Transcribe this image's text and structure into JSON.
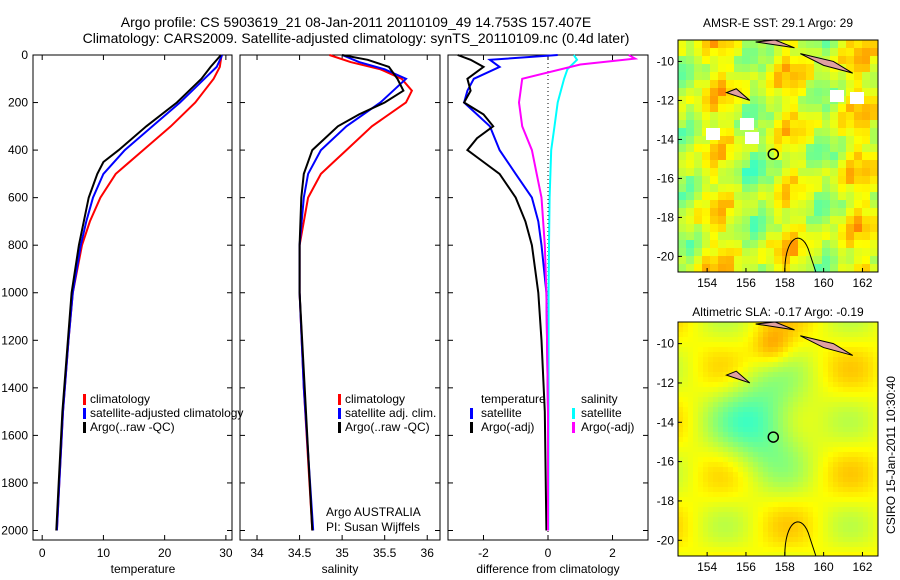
{
  "title_line1": "Argo profile: CS 5903619_21 08-Jan-2011 20110109_49 14.753S 157.407E",
  "title_line2": "Climatology: CARS2009. Satellite-adjusted climatology: synTS_20110109.nc (0.4d later)",
  "side_stamp": "CSIRO 15-Jan-2011 10:30:40",
  "credits": {
    "line1": "Argo AUSTRALIA",
    "line2": "PI: Susan Wijffels"
  },
  "colors": {
    "climatology": "#ff0000",
    "satellite": "#0000ff",
    "argo": "#000000",
    "sal_satellite": "#00ffff",
    "sal_argo": "#ff00ff"
  },
  "chart_data": [
    {
      "type": "line",
      "xlabel": "temperature",
      "ylabel": "",
      "xlim": [
        -1.5,
        31
      ],
      "ylim": [
        2040,
        0
      ],
      "xticks": [
        "0",
        "10",
        "20",
        "30"
      ],
      "yticks": [
        "0",
        "200",
        "400",
        "600",
        "800",
        "1000",
        "1200",
        "1400",
        "1600",
        "1800",
        "2000"
      ],
      "legend": [
        "climatology",
        "satellite-adjusted climatology",
        "Argo(..raw -QC)"
      ],
      "legend_position": "lower-right",
      "series": [
        {
          "name": "climatology",
          "color": "#ff0000",
          "depth": [
            0,
            50,
            100,
            150,
            200,
            300,
            400,
            500,
            600,
            700,
            800,
            1000,
            1200,
            1500,
            1800,
            2000
          ],
          "values": [
            29.3,
            29,
            28,
            26.5,
            25,
            21,
            16.5,
            12,
            9.5,
            7.8,
            6.5,
            5,
            4.3,
            3.4,
            2.8,
            2.4
          ]
        },
        {
          "name": "satellite-adjusted climatology",
          "color": "#0000ff",
          "depth": [
            0,
            50,
            100,
            150,
            200,
            300,
            400,
            500,
            600,
            700,
            800,
            1000,
            1200,
            1500,
            1800,
            2000
          ],
          "values": [
            29.4,
            28.5,
            26.5,
            24.5,
            22.5,
            18,
            13.5,
            10,
            8.3,
            7.2,
            6.3,
            5,
            4.3,
            3.4,
            2.8,
            2.4
          ]
        },
        {
          "name": "Argo(..raw -QC)",
          "color": "#000000",
          "depth": [
            0,
            50,
            100,
            150,
            200,
            300,
            400,
            450,
            500,
            600,
            700,
            800,
            1000,
            1200,
            1500,
            1800,
            2000
          ],
          "values": [
            29.2,
            27.5,
            26,
            24,
            22,
            17,
            12.5,
            10,
            9,
            7.6,
            6.8,
            6,
            4.8,
            4.2,
            3.3,
            2.7,
            2.3
          ]
        }
      ]
    },
    {
      "type": "line",
      "xlabel": "salinity",
      "xlim": [
        33.8,
        36.15
      ],
      "ylim": [
        2040,
        0
      ],
      "xticks": [
        "34",
        "34.5",
        "35",
        "35.5",
        "36"
      ],
      "legend": [
        "climatology",
        "satellite adj. clim.",
        "Argo(..raw -QC)"
      ],
      "legend_position": "lower-right",
      "series": [
        {
          "name": "climatology",
          "color": "#ff0000",
          "depth": [
            0,
            30,
            60,
            100,
            150,
            200,
            300,
            400,
            450,
            500,
            600,
            800,
            1000,
            1400,
            2000
          ],
          "values": [
            34.85,
            35.1,
            35.45,
            35.7,
            35.82,
            35.75,
            35.35,
            35.05,
            34.9,
            34.75,
            34.6,
            34.5,
            34.5,
            34.55,
            34.65
          ]
        },
        {
          "name": "satellite adj. clim.",
          "color": "#0000ff",
          "depth": [
            0,
            30,
            60,
            100,
            150,
            200,
            300,
            400,
            500,
            600,
            800,
            1000,
            1400,
            2000
          ],
          "values": [
            35.0,
            35.2,
            35.5,
            35.75,
            35.6,
            35.45,
            35.05,
            34.75,
            34.6,
            34.55,
            34.5,
            34.5,
            34.55,
            34.66
          ]
        },
        {
          "name": "Argo(..raw -QC)",
          "color": "#000000",
          "depth": [
            0,
            20,
            50,
            100,
            150,
            200,
            250,
            300,
            400,
            500,
            600,
            800,
            1000,
            1400,
            2000
          ],
          "values": [
            35.0,
            35.3,
            35.55,
            35.65,
            35.72,
            35.5,
            35.2,
            34.95,
            34.65,
            34.55,
            34.52,
            34.5,
            34.5,
            34.56,
            34.65
          ]
        }
      ]
    },
    {
      "type": "line",
      "xlabel": "difference from climatology",
      "xlim": [
        -3.1,
        3.1
      ],
      "ylim": [
        2040,
        0
      ],
      "xticks": [
        "-2",
        "0",
        "2"
      ],
      "legend_headers": [
        "temperature",
        "salinity"
      ],
      "legend": [
        "satellite",
        "Argo(-adj)",
        "satellite",
        "Argo(-adj)"
      ],
      "legend_position": "lower-right",
      "series": [
        {
          "name": "temperature satellite",
          "color": "#0000ff",
          "depth": [
            0,
            20,
            50,
            100,
            150,
            200,
            300,
            400,
            500,
            600,
            700,
            800,
            1000,
            1500,
            2000
          ],
          "values": [
            0.3,
            -1.8,
            -1.5,
            -2.3,
            -2.5,
            -2.6,
            -1.8,
            -1.5,
            -1.0,
            -0.5,
            -0.3,
            -0.2,
            -0.05,
            0,
            0
          ]
        },
        {
          "name": "temperature Argo(-adj)",
          "color": "#000000",
          "depth": [
            0,
            20,
            50,
            100,
            150,
            200,
            250,
            300,
            350,
            400,
            450,
            500,
            600,
            700,
            800,
            1000,
            1200,
            1500,
            2000
          ],
          "values": [
            -2.8,
            -2.4,
            -2.0,
            -2.5,
            -2.4,
            -2.6,
            -2.0,
            -1.7,
            -2.2,
            -2.5,
            -2.0,
            -1.5,
            -1.0,
            -0.7,
            -0.5,
            -0.3,
            -0.2,
            -0.1,
            -0.05
          ]
        },
        {
          "name": "salinity satellite",
          "color": "#00ffff",
          "depth": [
            0,
            20,
            60,
            100,
            200,
            300,
            400,
            600,
            800,
            1000,
            1500,
            2000
          ],
          "values": [
            0.8,
            0.9,
            0.6,
            0.5,
            0.3,
            0.2,
            0.1,
            0.05,
            0.03,
            0.02,
            0.02,
            0.01
          ]
        },
        {
          "name": "salinity Argo(-adj)",
          "color": "#ff00ff",
          "depth": [
            0,
            15,
            40,
            100,
            150,
            200,
            300,
            400,
            500,
            600,
            800,
            1000,
            1500,
            2000
          ],
          "values": [
            2.5,
            2.7,
            1.0,
            -0.8,
            -0.85,
            -0.9,
            -0.8,
            -0.5,
            -0.35,
            -0.2,
            -0.1,
            -0.05,
            0,
            0
          ]
        }
      ]
    },
    {
      "type": "heatmap",
      "title": "AMSR-E SST: 29.1 Argo: 29",
      "xlim": [
        152.5,
        162.8
      ],
      "ylim": [
        -20.8,
        -8.9
      ],
      "xticks": [
        "154",
        "156",
        "158",
        "160",
        "162"
      ],
      "yticks": [
        "-10",
        "-12",
        "-14",
        "-16",
        "-18",
        "-20"
      ],
      "argo_position": {
        "lon": 157.407,
        "lat": -14.753
      }
    },
    {
      "type": "heatmap",
      "title": "Altimetric SLA: -0.17 Argo: -0.19",
      "xlim": [
        152.5,
        162.8
      ],
      "ylim": [
        -20.8,
        -8.9
      ],
      "xticks": [
        "154",
        "156",
        "158",
        "160",
        "162"
      ],
      "yticks": [
        "-10",
        "-12",
        "-14",
        "-16",
        "-18",
        "-20"
      ],
      "argo_position": {
        "lon": 157.407,
        "lat": -14.753
      }
    }
  ]
}
